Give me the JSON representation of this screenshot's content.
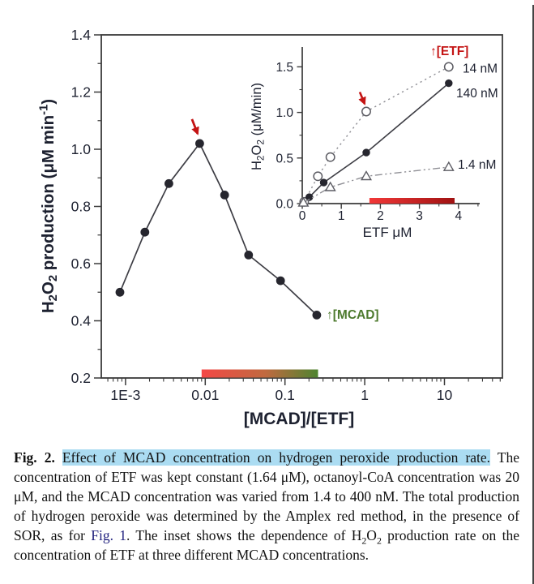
{
  "colors": {
    "axis": "#3a3a3a",
    "tick_label": "#1d2130",
    "marker": "#26262e",
    "line": "#3d3d44",
    "muted_line": "#8f8f95",
    "open_marker_stroke": "#5c5c63",
    "red_accent": "#c41414",
    "green_accent": "#4d7a2e",
    "main_bar_gradient": [
      "#f44846",
      "#c06a40",
      "#4e8430"
    ],
    "inset_bar_gradient": [
      "#f23838",
      "#a01212"
    ],
    "caption_highlight": "#abdcf2",
    "caption_link": "#20207e",
    "page_edge": "#444444"
  },
  "chart_data": [
    {
      "id": "main",
      "type": "line",
      "title": "",
      "xlabel": "[MCAD]/[ETF]",
      "ylabel": "H₂O₂ production (μM min⁻¹)",
      "xscale": "log",
      "xlim": [
        0.00052,
        53
      ],
      "ylim": [
        0.2,
        1.4
      ],
      "grid": false,
      "xticks": [
        {
          "label": "1E-3",
          "value": 0.001
        },
        {
          "label": "0.01",
          "value": 0.01
        },
        {
          "label": "0.1",
          "value": 0.1
        },
        {
          "label": "1",
          "value": 1
        },
        {
          "label": "10",
          "value": 10
        }
      ],
      "yticks": [
        "0.2",
        "0.4",
        "0.6",
        "0.8",
        "1.0",
        "1.2",
        "1.4"
      ],
      "series": [
        {
          "name": "H2O2 production rate",
          "marker": "filled-circle",
          "line_style": "solid",
          "points": [
            [
              0.00085,
              0.5
            ],
            [
              0.00175,
              0.71
            ],
            [
              0.0035,
              0.88
            ],
            [
              0.0085,
              1.02
            ],
            [
              0.0175,
              0.84
            ],
            [
              0.035,
              0.63
            ],
            [
              0.088,
              0.54
            ],
            [
              0.25,
              0.42
            ]
          ]
        }
      ],
      "annotations": {
        "peak_arrow": {
          "points_at": [
            0.0085,
            1.02
          ]
        },
        "direction_label": {
          "text": "↑[MCAD]"
        },
        "gradient_bar": {
          "x0": 0.009,
          "x1": 0.26
        }
      }
    },
    {
      "id": "inset",
      "type": "line",
      "title": "",
      "xlabel": "ETF μM",
      "ylabel": "H₂O₂ (μM/min)",
      "xscale": "linear",
      "xlim": [
        0,
        4.55
      ],
      "ylim": [
        0,
        1.68
      ],
      "grid": false,
      "xticks": [
        "0",
        "1",
        "2",
        "3",
        "4"
      ],
      "yticks": [
        "0.0",
        "0.5",
        "1.0",
        "1.5"
      ],
      "series": [
        {
          "name": "14 nM",
          "marker": "open-circle",
          "line_style": "dotted",
          "points": [
            [
              0.05,
              0.02
            ],
            [
              0.4,
              0.3
            ],
            [
              0.72,
              0.51
            ],
            [
              1.64,
              1.01
            ],
            [
              3.75,
              1.5
            ]
          ]
        },
        {
          "name": "140 nM",
          "marker": "filled-circle",
          "line_style": "solid",
          "points": [
            [
              0.18,
              0.07
            ],
            [
              0.55,
              0.23
            ],
            [
              1.64,
              0.56
            ],
            [
              3.75,
              1.32
            ]
          ]
        },
        {
          "name": "1.4 nM",
          "marker": "open-triangle",
          "line_style": "dashdot",
          "points": [
            [
              0.03,
              0.01
            ],
            [
              0.72,
              0.18
            ],
            [
              1.64,
              0.3
            ],
            [
              3.75,
              0.4
            ]
          ]
        }
      ],
      "annotations": {
        "arrow": {
          "points_at": [
            1.64,
            1.01
          ]
        },
        "direction_label": {
          "text": "↑[ETF]"
        },
        "bar": {
          "x0": 1.72,
          "x1": 3.9
        }
      }
    }
  ],
  "caption": {
    "segments": [
      {
        "text": "Fig. 2. ",
        "style": "bold"
      },
      {
        "text": "Effect of MCAD concentration on hydrogen peroxide production rate.",
        "style": "highlight"
      },
      {
        "text": " The concentration of ETF was kept constant (1.64 μM), octanoyl-CoA concentration was 20 μM, and the MCAD concentration was varied from 1.4 to 400 nM. The total production of hydrogen peroxide was determined by the Amplex red method, in the presence of SOR, as for ",
        "style": "normal"
      },
      {
        "text": "Fig. 1",
        "style": "link"
      },
      {
        "text": ". The inset shows the dependence of H",
        "style": "normal"
      },
      {
        "text": "2",
        "style": "sub"
      },
      {
        "text": "O",
        "style": "normal"
      },
      {
        "text": "2",
        "style": "sub"
      },
      {
        "text": " production rate on the concentration of ETF at three different MCAD concentrations.",
        "style": "normal"
      }
    ]
  }
}
